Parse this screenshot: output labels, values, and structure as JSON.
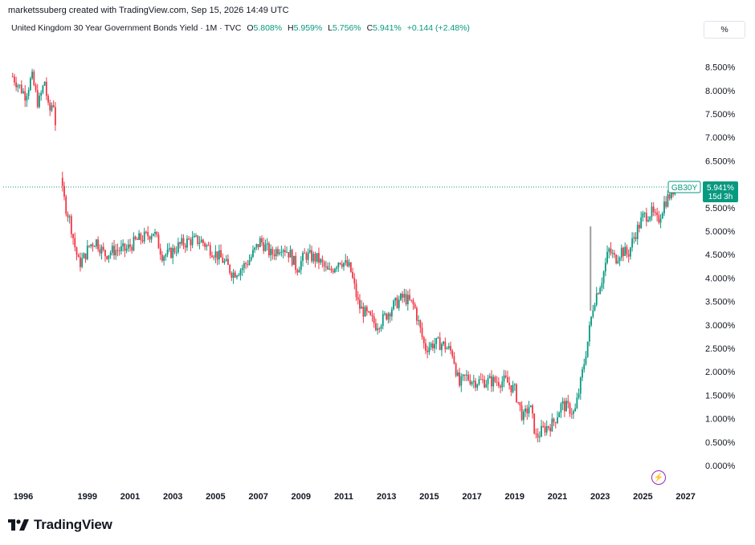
{
  "credit": "marketssuberg created with TradingView.com, Sep 15, 2026 14:49 UTC",
  "legend": {
    "symbol": "United Kingdom 30 Year Government Bonds Yield · 1M · TVC",
    "open_label": "O",
    "open": "5.808%",
    "high_label": "H",
    "high": "5.959%",
    "low_label": "L",
    "low": "5.756%",
    "close_label": "C",
    "close": "5.941%",
    "change": "+0.144 (+2.48%)"
  },
  "scale_button": "%",
  "price_tag": {
    "ticker": "GB30Y",
    "price": "5.941%",
    "countdown": "15d 3h"
  },
  "brand": "TradingView",
  "colors": {
    "up": "#089981",
    "down": "#f23645",
    "tag": "#089981",
    "accent_icon": "#9c27b0"
  },
  "chart_data": {
    "type": "candlestick",
    "y_unit": "%",
    "y_ticks": [
      "8.500%",
      "8.000%",
      "7.500%",
      "7.000%",
      "6.500%",
      "6.000%",
      "5.500%",
      "5.000%",
      "4.500%",
      "4.000%",
      "3.500%",
      "3.000%",
      "2.500%",
      "2.000%",
      "1.500%",
      "1.000%",
      "0.500%",
      "0.000%"
    ],
    "x_ticks": [
      "1996",
      "1999",
      "2001",
      "2003",
      "2005",
      "2007",
      "2009",
      "2011",
      "2013",
      "2015",
      "2017",
      "2019",
      "2021",
      "2023",
      "2025",
      "2027"
    ],
    "x_range": [
      1995.6,
      2027.2
    ],
    "y_range": [
      -0.2,
      8.8
    ],
    "last_value": 5.941,
    "approx_close_path": [
      [
        1995.7,
        8.3
      ],
      [
        1996.0,
        8.1
      ],
      [
        1996.3,
        7.9
      ],
      [
        1996.6,
        8.3
      ],
      [
        1996.9,
        7.7
      ],
      [
        1997.2,
        8.2
      ],
      [
        1997.4,
        7.5
      ],
      [
        1997.6,
        7.8
      ],
      [
        1998.0,
        5.9
      ],
      [
        1998.2,
        5.5
      ],
      [
        1998.4,
        5.2
      ],
      [
        1998.6,
        4.7
      ],
      [
        1998.8,
        4.3
      ],
      [
        1999.0,
        4.4
      ],
      [
        1999.3,
        4.7
      ],
      [
        1999.6,
        4.8
      ],
      [
        2000.0,
        4.5
      ],
      [
        2000.5,
        4.6
      ],
      [
        2001.0,
        4.6
      ],
      [
        2001.5,
        4.8
      ],
      [
        2002.0,
        4.9
      ],
      [
        2002.3,
        5.0
      ],
      [
        2002.7,
        4.5
      ],
      [
        2003.0,
        4.5
      ],
      [
        2003.5,
        4.7
      ],
      [
        2004.0,
        4.8
      ],
      [
        2004.5,
        4.8
      ],
      [
        2005.0,
        4.6
      ],
      [
        2005.5,
        4.4
      ],
      [
        2006.0,
        4.1
      ],
      [
        2006.4,
        4.2
      ],
      [
        2006.8,
        4.4
      ],
      [
        2007.3,
        4.8
      ],
      [
        2007.8,
        4.5
      ],
      [
        2008.3,
        4.7
      ],
      [
        2008.7,
        4.5
      ],
      [
        2009.0,
        4.2
      ],
      [
        2009.4,
        4.5
      ],
      [
        2010.0,
        4.4
      ],
      [
        2010.5,
        4.1
      ],
      [
        2011.0,
        4.4
      ],
      [
        2011.5,
        4.2
      ],
      [
        2011.9,
        3.4
      ],
      [
        2012.3,
        3.2
      ],
      [
        2012.7,
        3.0
      ],
      [
        2013.0,
        3.1
      ],
      [
        2013.5,
        3.4
      ],
      [
        2014.0,
        3.6
      ],
      [
        2014.5,
        3.4
      ],
      [
        2015.0,
        2.5
      ],
      [
        2015.4,
        2.6
      ],
      [
        2015.8,
        2.6
      ],
      [
        2016.3,
        2.4
      ],
      [
        2016.6,
        1.7
      ],
      [
        2016.9,
        1.9
      ],
      [
        2017.3,
        1.8
      ],
      [
        2017.8,
        1.8
      ],
      [
        2018.3,
        1.8
      ],
      [
        2018.8,
        1.8
      ],
      [
        2019.2,
        1.6
      ],
      [
        2019.6,
        1.0
      ],
      [
        2019.9,
        1.3
      ],
      [
        2020.2,
        0.6
      ],
      [
        2020.6,
        0.8
      ],
      [
        2021.0,
        0.9
      ],
      [
        2021.4,
        1.3
      ],
      [
        2021.8,
        1.2
      ],
      [
        2022.0,
        1.1
      ],
      [
        2022.3,
        1.8
      ],
      [
        2022.6,
        2.6
      ],
      [
        2022.9,
        3.5
      ],
      [
        2023.3,
        4.0
      ],
      [
        2023.6,
        4.6
      ],
      [
        2023.9,
        4.4
      ],
      [
        2024.2,
        4.6
      ],
      [
        2024.5,
        4.5
      ],
      [
        2024.8,
        4.9
      ],
      [
        2025.2,
        5.3
      ],
      [
        2025.6,
        5.4
      ],
      [
        2025.9,
        5.2
      ],
      [
        2026.2,
        5.6
      ],
      [
        2026.5,
        5.8
      ],
      [
        2026.7,
        5.941
      ]
    ]
  }
}
